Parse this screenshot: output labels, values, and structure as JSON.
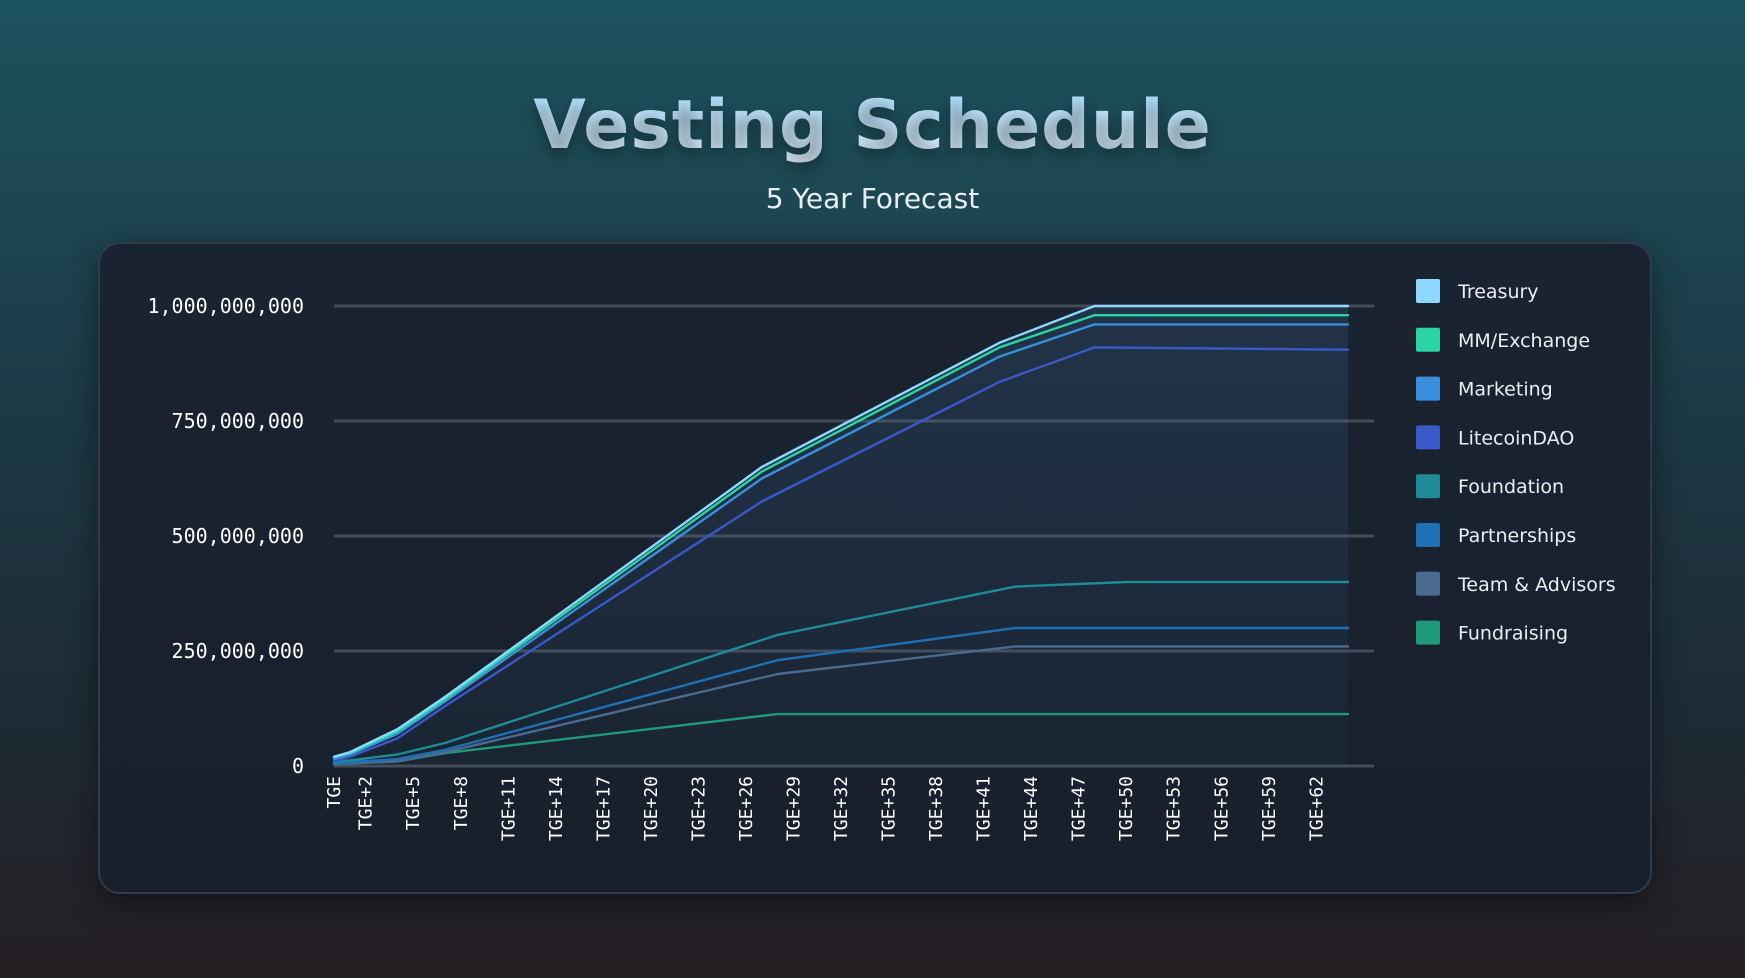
{
  "header": {
    "title": "Vesting Schedule",
    "subtitle": "5 Year Forecast"
  },
  "chart_data": {
    "type": "line",
    "title": "Vesting Schedule",
    "subtitle": "5 Year Forecast",
    "xlabel": "",
    "ylabel": "",
    "ylim": [
      0,
      1000000000
    ],
    "yticks": [
      0,
      250000000,
      500000000,
      750000000,
      1000000000
    ],
    "ytick_labels": [
      "0",
      "250,000,000",
      "500,000,000",
      "750,000,000",
      "1,000,000,000"
    ],
    "x_range": [
      0,
      64
    ],
    "xticks": [
      0,
      2,
      5,
      8,
      11,
      14,
      17,
      20,
      23,
      26,
      29,
      32,
      35,
      38,
      41,
      44,
      47,
      50,
      53,
      56,
      59,
      62
    ],
    "xtick_labels": [
      "TGE",
      "TGE+2",
      "TGE+5",
      "TGE+8",
      "TGE+11",
      "TGE+14",
      "TGE+17",
      "TGE+20",
      "TGE+23",
      "TGE+26",
      "TGE+29",
      "TGE+32",
      "TGE+35",
      "TGE+38",
      "TGE+41",
      "TGE+44",
      "TGE+47",
      "TGE+50",
      "TGE+53",
      "TGE+56",
      "TGE+59",
      "TGE+62"
    ],
    "grid": true,
    "legend_position": "right",
    "series": [
      {
        "name": "Treasury",
        "color": "#8fd8ff",
        "x": [
          0,
          1,
          4,
          7,
          27,
          42,
          48,
          64
        ],
        "y": [
          20000000,
          30000000,
          80000000,
          150000000,
          650000000,
          920000000,
          1000000000,
          1000000000
        ]
      },
      {
        "name": "MM/Exchange",
        "color": "#2cd3a5",
        "x": [
          0,
          1,
          4,
          7,
          27,
          42,
          48,
          64
        ],
        "y": [
          20000000,
          28000000,
          75000000,
          145000000,
          640000000,
          910000000,
          980000000,
          980000000
        ]
      },
      {
        "name": "Marketing",
        "color": "#3a8fdc",
        "x": [
          0,
          1,
          4,
          7,
          27,
          42,
          48,
          64
        ],
        "y": [
          15000000,
          25000000,
          70000000,
          140000000,
          625000000,
          890000000,
          960000000,
          960000000
        ]
      },
      {
        "name": "LitecoinDAO",
        "color": "#3a58c8",
        "x": [
          0,
          1,
          4,
          7,
          27,
          42,
          48,
          64
        ],
        "y": [
          10000000,
          20000000,
          60000000,
          130000000,
          575000000,
          835000000,
          910000000,
          905000000
        ]
      },
      {
        "name": "Foundation",
        "color": "#1f8a98",
        "x": [
          0,
          4,
          7,
          28,
          43,
          50,
          64
        ],
        "y": [
          8000000,
          25000000,
          50000000,
          285000000,
          390000000,
          400000000,
          400000000
        ]
      },
      {
        "name": "Partnerships",
        "color": "#1f6fb5",
        "x": [
          0,
          4,
          7,
          28,
          43,
          64
        ],
        "y": [
          6000000,
          15000000,
          35000000,
          230000000,
          300000000,
          300000000
        ]
      },
      {
        "name": "Team & Advisors",
        "color": "#4a6a8f",
        "x": [
          0,
          4,
          7,
          28,
          43,
          64
        ],
        "y": [
          5000000,
          10000000,
          30000000,
          200000000,
          260000000,
          260000000
        ]
      },
      {
        "name": "Fundraising",
        "color": "#1e9a7a",
        "x": [
          0,
          4,
          7,
          28,
          64
        ],
        "y": [
          4000000,
          10000000,
          28000000,
          113000000,
          113000000
        ]
      }
    ]
  }
}
